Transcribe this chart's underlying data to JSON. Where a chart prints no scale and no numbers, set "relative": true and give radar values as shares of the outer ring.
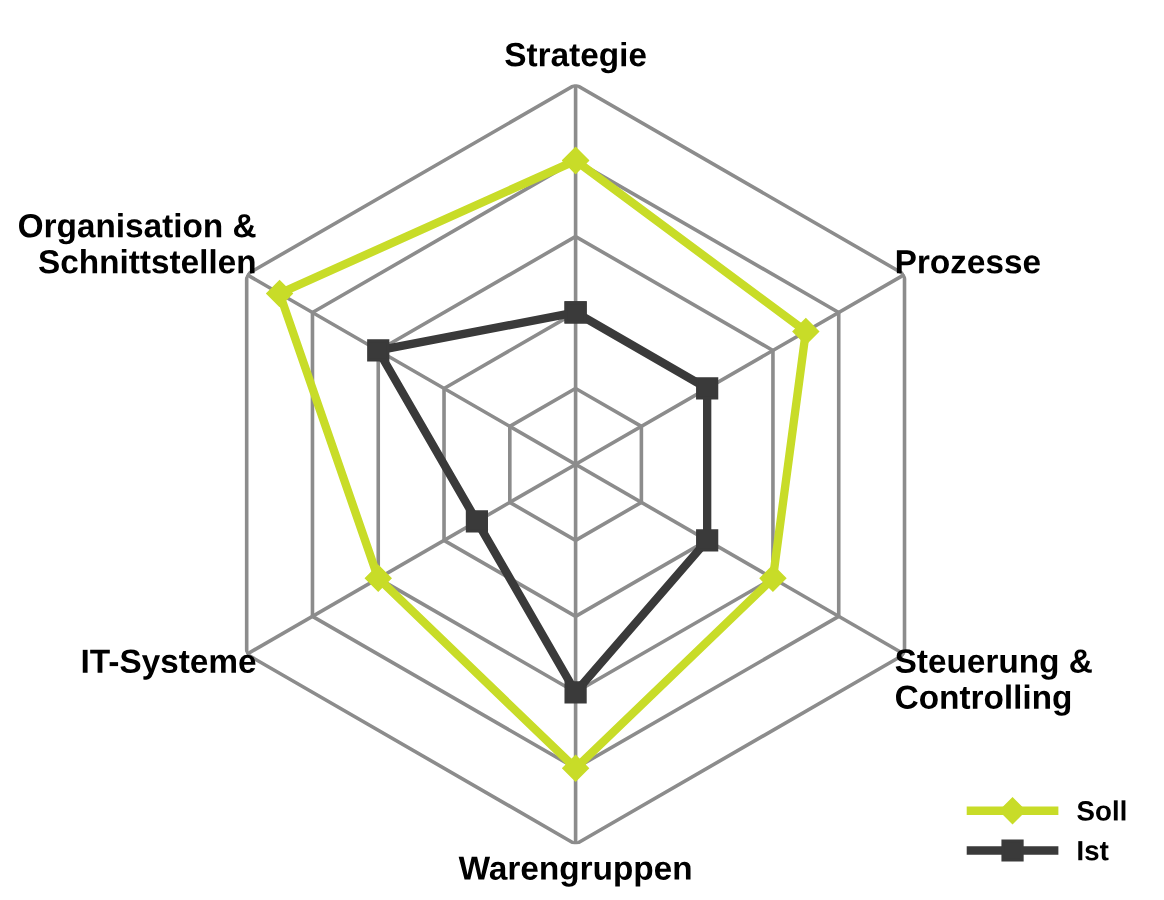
{
  "chart_data": {
    "type": "radar",
    "relative": true,
    "grid": true,
    "legend": "bottom right",
    "categories": [
      "Strategie",
      "Prozesse",
      "Steuerung &\nControlling",
      "Warengruppen",
      "IT-Systeme",
      "Organisation &\nSchnittstellen"
    ],
    "series": [
      {
        "name": "Soll",
        "color": "#c8dc28",
        "marker": "diamond",
        "values": [
          0.8,
          0.7,
          0.6,
          0.8,
          0.6,
          0.9
        ]
      },
      {
        "name": "Ist",
        "color": "#3a3a3a",
        "marker": "square",
        "values": [
          0.4,
          0.4,
          0.4,
          0.6,
          0.3,
          0.6
        ]
      }
    ]
  }
}
